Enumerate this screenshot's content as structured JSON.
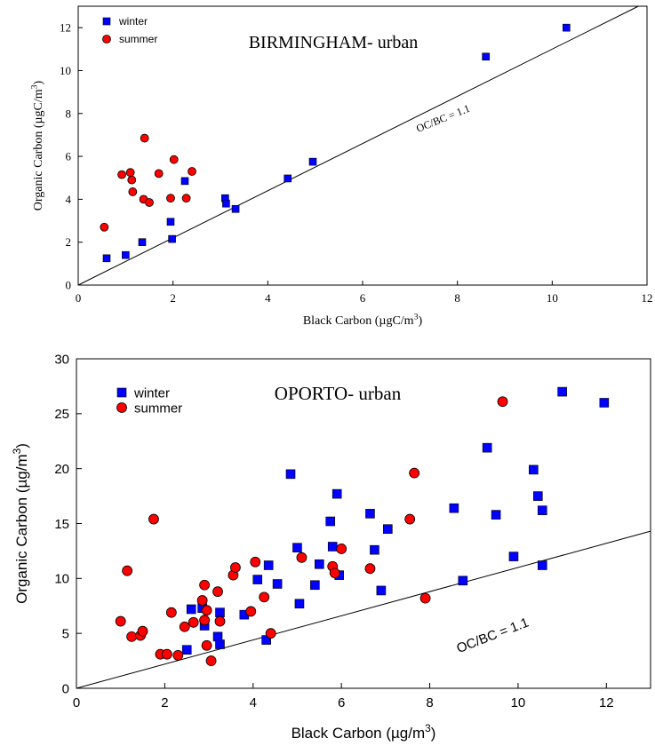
{
  "chart_data": [
    {
      "type": "scatter",
      "title": "BIRMINGHAM- urban",
      "xlabel": "Black Carbon (µgC/m",
      "xlabel_sup": "3",
      "xlabel_end": ")",
      "ylabel": "Organic Carbon (µgC/m",
      "ylabel_sup": "3",
      "ylabel_end": ")",
      "xlim": [
        0,
        12
      ],
      "ylim": [
        0,
        13
      ],
      "xticks": [
        0,
        2,
        4,
        6,
        8,
        10,
        12
      ],
      "yticks": [
        0,
        2,
        4,
        6,
        8,
        10,
        12
      ],
      "legend_position": "top-left",
      "reference_line": {
        "label": "OC/BC = 1.1",
        "slope": 1.1
      },
      "series": [
        {
          "name": "winter",
          "marker": "square",
          "color": "#0000ff",
          "points": [
            [
              0.6,
              1.25
            ],
            [
              1.0,
              1.4
            ],
            [
              1.35,
              2.0
            ],
            [
              1.95,
              2.95
            ],
            [
              1.98,
              2.15
            ],
            [
              2.25,
              4.85
            ],
            [
              3.1,
              4.05
            ],
            [
              3.12,
              3.8
            ],
            [
              3.32,
              3.55
            ],
            [
              4.42,
              4.97
            ],
            [
              4.95,
              5.75
            ],
            [
              8.6,
              10.65
            ],
            [
              10.3,
              12.0
            ]
          ]
        },
        {
          "name": "summer",
          "marker": "circle",
          "color": "#ff0000",
          "points": [
            [
              0.55,
              2.7
            ],
            [
              0.92,
              5.15
            ],
            [
              1.1,
              5.25
            ],
            [
              1.13,
              4.9
            ],
            [
              1.15,
              4.35
            ],
            [
              1.38,
              4.0
            ],
            [
              1.4,
              6.85
            ],
            [
              1.5,
              3.85
            ],
            [
              1.7,
              5.2
            ],
            [
              1.95,
              4.05
            ],
            [
              2.02,
              5.85
            ],
            [
              2.28,
              4.05
            ],
            [
              2.4,
              5.3
            ]
          ]
        }
      ]
    },
    {
      "type": "scatter",
      "title": "OPORTO- urban",
      "xlabel": "Black Carbon (µg/m",
      "xlabel_sup": "3",
      "xlabel_end": ")",
      "ylabel": "Organic Carbon (µg/m",
      "ylabel_sup": "3",
      "ylabel_end": ")",
      "xlim": [
        0,
        13
      ],
      "ylim": [
        0,
        30
      ],
      "xticks": [
        0,
        2,
        4,
        6,
        8,
        10,
        12
      ],
      "yticks": [
        0,
        5,
        10,
        15,
        20,
        25,
        30
      ],
      "legend_position": "top-left",
      "reference_line": {
        "label": "OC/BC = 1.1",
        "slope": 1.1
      },
      "series": [
        {
          "name": "winter",
          "marker": "square",
          "color": "#0000ff",
          "points": [
            [
              2.5,
              3.5
            ],
            [
              2.6,
              7.2
            ],
            [
              2.85,
              7.3
            ],
            [
              2.9,
              5.7
            ],
            [
              3.2,
              4.7
            ],
            [
              3.25,
              4.0
            ],
            [
              3.25,
              6.9
            ],
            [
              3.8,
              6.7
            ],
            [
              4.1,
              9.9
            ],
            [
              4.3,
              4.4
            ],
            [
              4.35,
              11.2
            ],
            [
              4.55,
              9.5
            ],
            [
              4.85,
              19.5
            ],
            [
              5.0,
              12.8
            ],
            [
              5.05,
              7.7
            ],
            [
              5.4,
              9.4
            ],
            [
              5.5,
              11.3
            ],
            [
              5.75,
              15.2
            ],
            [
              5.8,
              12.9
            ],
            [
              5.9,
              17.7
            ],
            [
              5.95,
              10.3
            ],
            [
              6.65,
              15.9
            ],
            [
              6.75,
              12.6
            ],
            [
              6.9,
              8.9
            ],
            [
              7.05,
              14.5
            ],
            [
              8.55,
              16.4
            ],
            [
              8.75,
              9.8
            ],
            [
              9.3,
              21.9
            ],
            [
              9.5,
              15.8
            ],
            [
              9.9,
              12.0
            ],
            [
              10.35,
              19.9
            ],
            [
              10.45,
              17.5
            ],
            [
              10.55,
              16.2
            ],
            [
              10.55,
              11.2
            ],
            [
              11.0,
              27.0
            ],
            [
              11.95,
              26.0
            ]
          ]
        },
        {
          "name": "summer",
          "marker": "circle",
          "color": "#ff0000",
          "points": [
            [
              1.0,
              6.1
            ],
            [
              1.15,
              10.7
            ],
            [
              1.25,
              4.7
            ],
            [
              1.45,
              4.8
            ],
            [
              1.5,
              5.2
            ],
            [
              1.75,
              15.4
            ],
            [
              1.9,
              3.1
            ],
            [
              2.05,
              3.1
            ],
            [
              2.15,
              6.9
            ],
            [
              2.3,
              3.0
            ],
            [
              2.45,
              5.6
            ],
            [
              2.65,
              6.0
            ],
            [
              2.85,
              8.0
            ],
            [
              2.9,
              9.4
            ],
            [
              2.9,
              6.2
            ],
            [
              2.95,
              3.9
            ],
            [
              2.95,
              7.1
            ],
            [
              3.05,
              2.5
            ],
            [
              3.2,
              8.8
            ],
            [
              3.25,
              6.1
            ],
            [
              3.55,
              10.3
            ],
            [
              3.6,
              11.0
            ],
            [
              3.95,
              7.0
            ],
            [
              4.05,
              11.5
            ],
            [
              4.25,
              8.3
            ],
            [
              4.4,
              5.0
            ],
            [
              5.1,
              11.9
            ],
            [
              5.8,
              11.1
            ],
            [
              5.85,
              10.5
            ],
            [
              6.0,
              12.7
            ],
            [
              6.65,
              10.9
            ],
            [
              7.55,
              15.4
            ],
            [
              7.65,
              19.6
            ],
            [
              7.9,
              8.2
            ],
            [
              9.65,
              26.1
            ]
          ]
        }
      ]
    }
  ]
}
